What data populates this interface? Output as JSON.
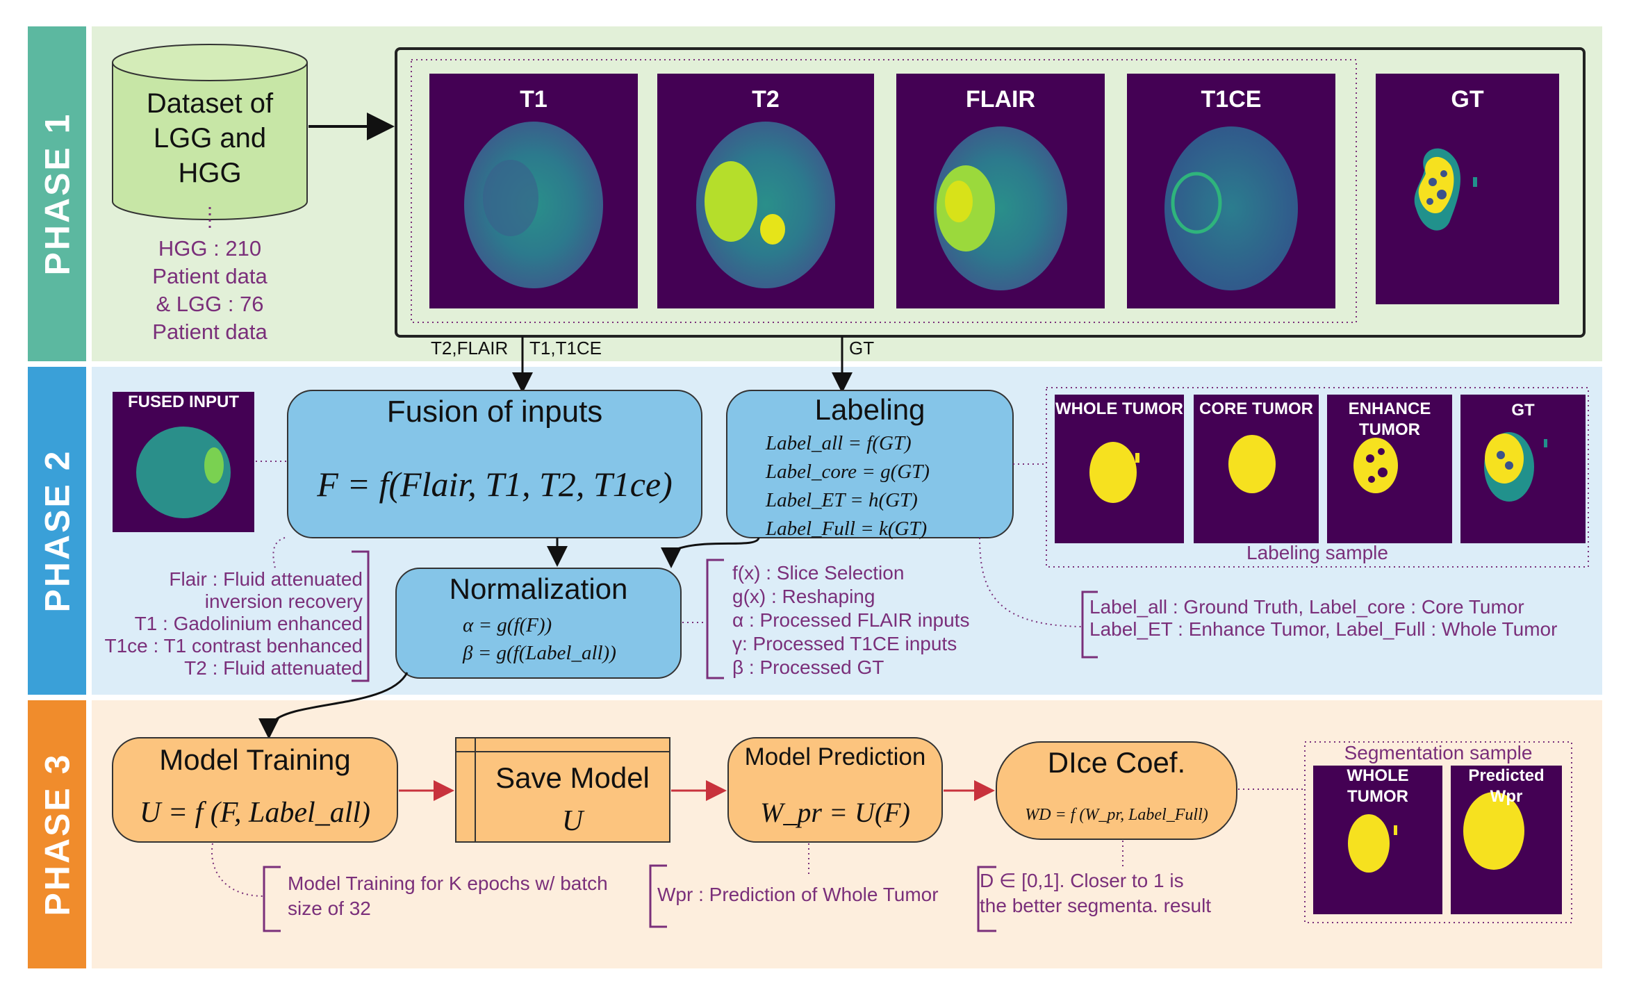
{
  "phases": {
    "p1": {
      "label": "PHASE 1",
      "color": "#5cb8a0",
      "bg": "#e2f0d8"
    },
    "p2": {
      "label": "PHASE 2",
      "color": "#3aa0d8",
      "bg": "#dcedf8"
    },
    "p3": {
      "label": "PHASE 3",
      "color": "#f08c2c",
      "bg": "#fdeedd"
    }
  },
  "phase1": {
    "dataset_lines": [
      "Dataset of",
      "LGG and",
      "HGG"
    ],
    "dataset_note": [
      "HGG : 210",
      "Patient data",
      "& LGG : 76",
      "Patient data"
    ],
    "modalities": [
      "T1",
      "T2",
      "FLAIR",
      "T1CE",
      "GT"
    ],
    "arrow_labels": {
      "left": "T2,FLAIR",
      "mid": "T1,T1CE",
      "right": "GT"
    }
  },
  "phase2": {
    "fused_input_label": "FUSED INPUT",
    "fusion": {
      "title": "Fusion of inputs",
      "formula": "F = f(Flair, T1, T2, T1ce)"
    },
    "labeling": {
      "title": "Labeling",
      "formulas": [
        "Label_all = f(GT)",
        "Label_core = g(GT)",
        "Label_ET = h(GT)",
        "Label_Full = k(GT)"
      ]
    },
    "normalization": {
      "title": "Normalization",
      "formulas": [
        "α = g(f(F))",
        "β = g(f(Label_all))"
      ]
    },
    "modality_notes": [
      "Flair : Fluid attenuated",
      "inversion recovery",
      "T1 : Gadolinium enhanced",
      "T1ce : T1 contrast benhanced",
      "T2 : Fluid attenuated"
    ],
    "function_notes": [
      "f(x) : Slice Selection",
      "g(x) : Reshaping",
      "α : Processed FLAIR inputs",
      "γ: Processed T1CE inputs",
      "β : Processed GT"
    ],
    "label_samples": [
      "WHOLE TUMOR",
      "CORE TUMOR",
      "ENHANCE TUMOR",
      "GT"
    ],
    "label_samples_caption": "Labeling sample",
    "label_notes": [
      "Label_all : Ground Truth, Label_core : Core Tumor",
      "Label_ET : Enhance Tumor, Label_Full : Whole Tumor"
    ]
  },
  "phase3": {
    "training": {
      "title": "Model Training",
      "formula": "U = f (F, Label_all)"
    },
    "save": {
      "title": "Save Model",
      "formula": "U"
    },
    "prediction": {
      "title": "Model Prediction",
      "formula": "W_pr = U(F)"
    },
    "dice": {
      "title": "DIce Coef.",
      "formula": "WD = f (W_pr, Label_Full)"
    },
    "training_note": [
      "Model Training for K epochs w/   batch",
      "size of 32"
    ],
    "prediction_note": "Wpr : Prediction of Whole Tumor",
    "dice_note": [
      "D ∈ [0,1]. Closer to 1 is",
      "the better segmenta. result"
    ],
    "seg_caption": "Segmentation sample",
    "seg_samples": [
      "WHOLE TUMOR",
      "Predicted Wpr"
    ]
  },
  "colors": {
    "mri_bg": "#440154",
    "note_purple": "#7a2f7a",
    "tumor_yellow": "#f6e11f",
    "arrow_red": "#c8323c"
  }
}
